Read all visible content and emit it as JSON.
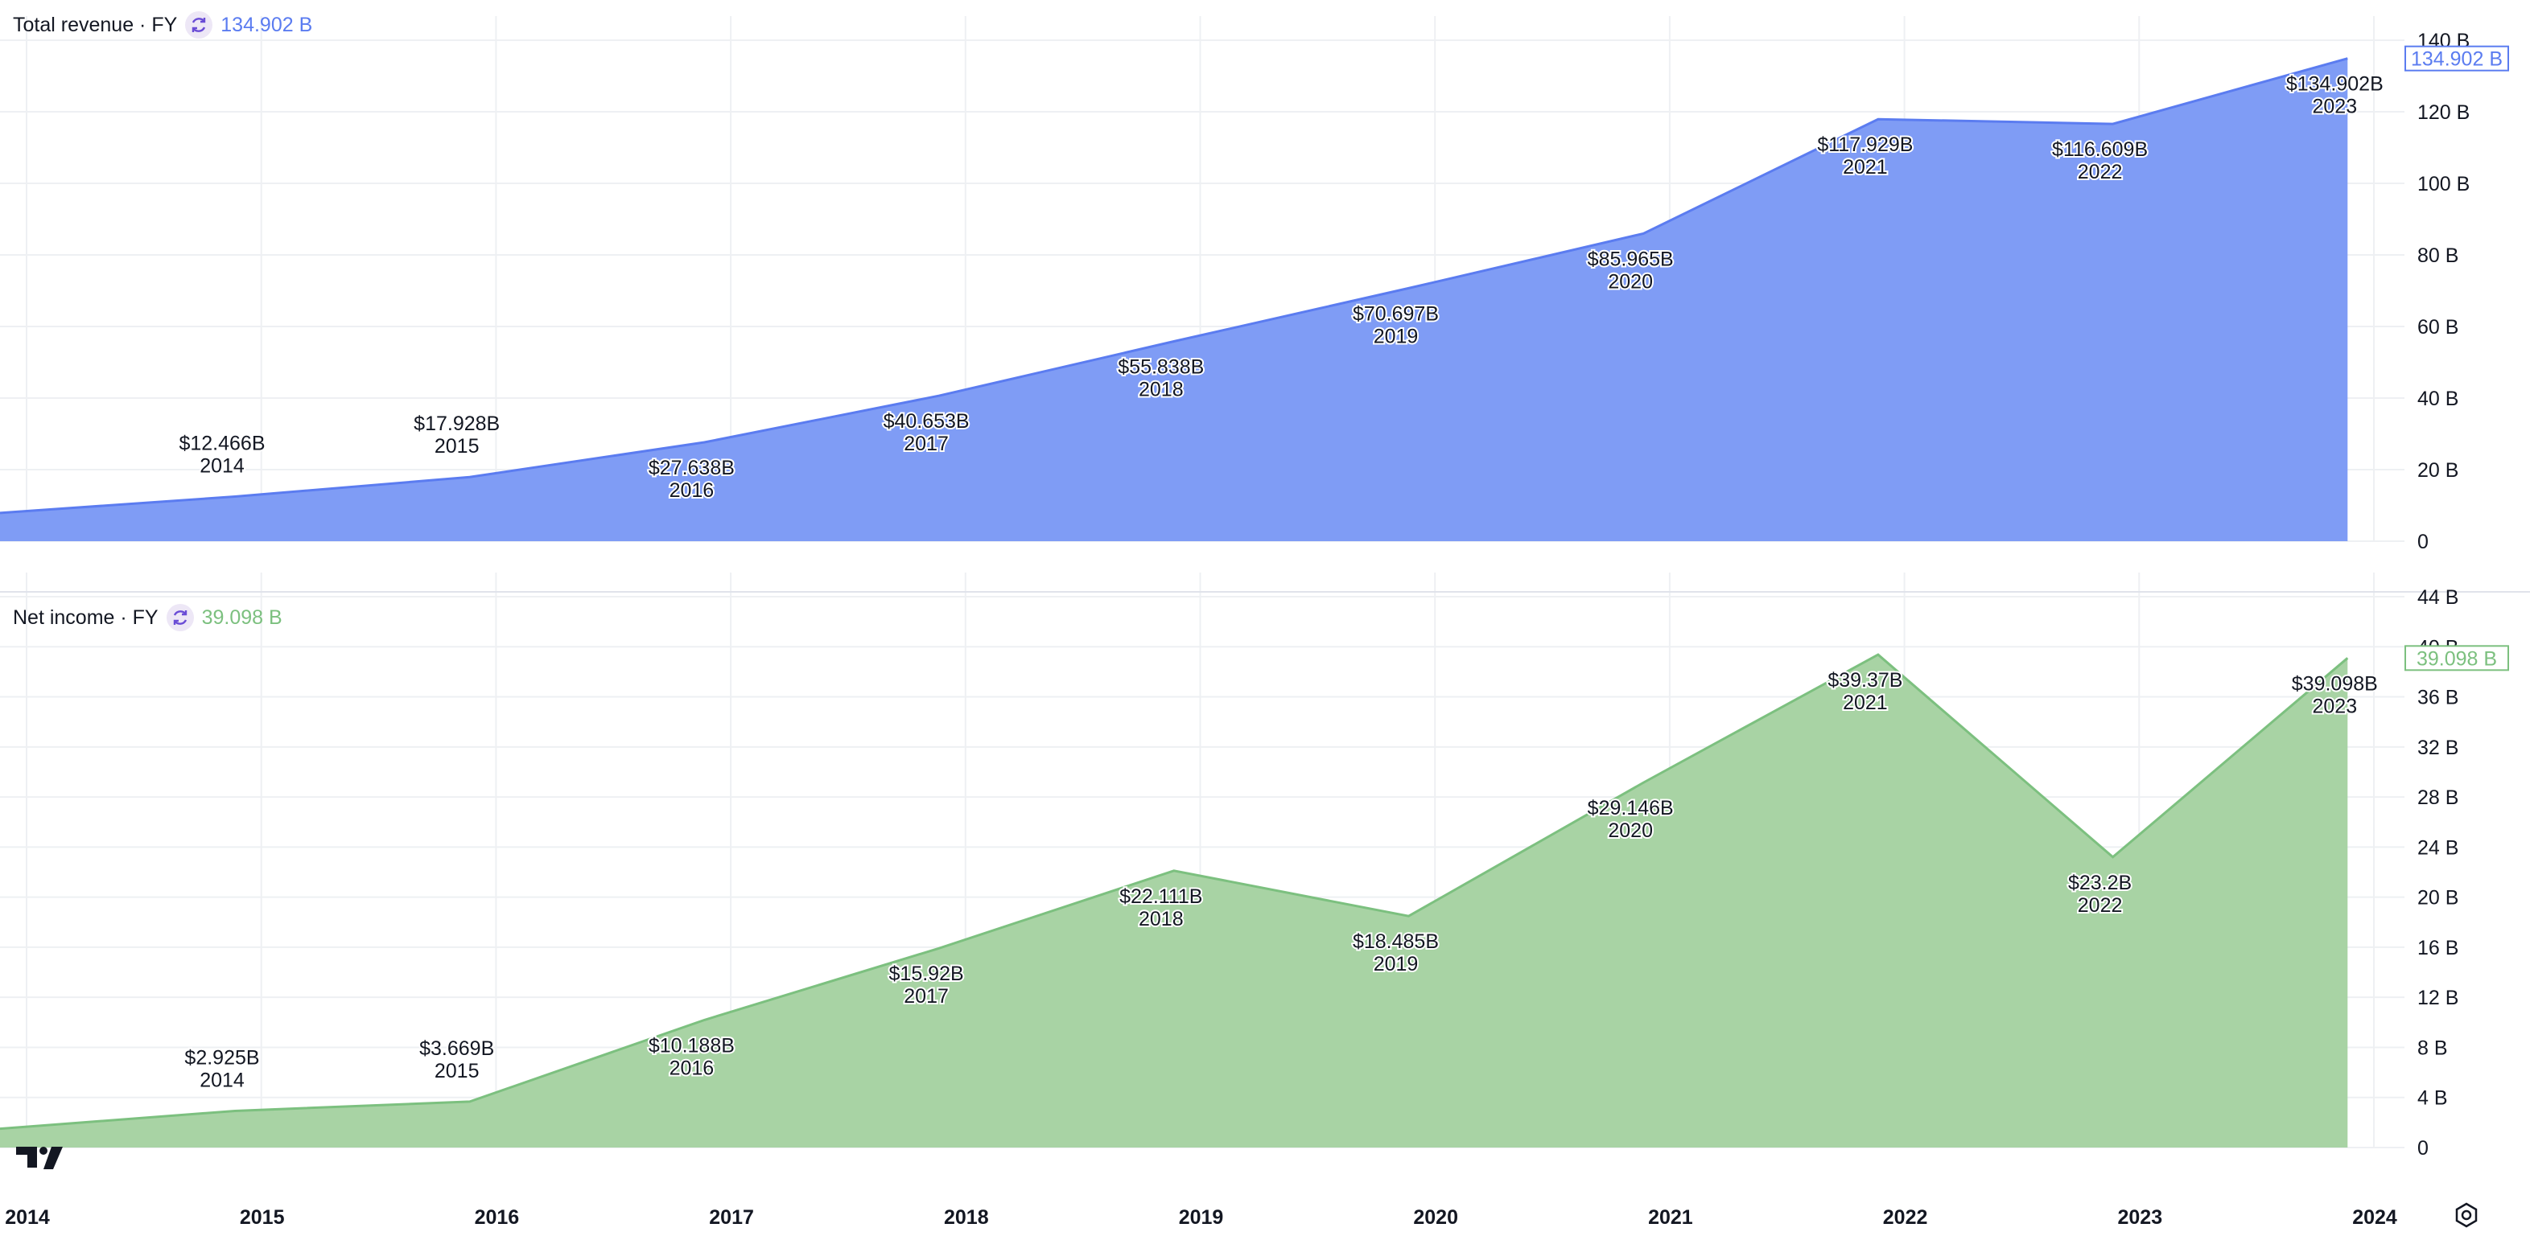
{
  "panels": [
    {
      "legend": {
        "title": "Total revenue · FY",
        "value": "134.902 B",
        "icon": "refresh-icon"
      },
      "badge": "134.902 B",
      "color": "#5b7cf0",
      "fill": "#7f9cf5"
    },
    {
      "legend": {
        "title": "Net income · FY",
        "value": "39.098 B",
        "icon": "refresh-icon"
      },
      "badge": "39.098 B",
      "color": "#7cc07f",
      "fill": "#a8d3a4"
    }
  ],
  "chart_data": [
    {
      "type": "area",
      "title": "Total revenue · FY",
      "x": [
        "2013-12",
        "2014-12",
        "2015-12",
        "2016-12",
        "2017-12",
        "2018-12",
        "2019-12",
        "2020-12",
        "2021-12",
        "2022-12",
        "2023-12"
      ],
      "values": [
        7.9,
        12.466,
        17.928,
        27.638,
        40.653,
        55.838,
        70.697,
        85.965,
        117.929,
        116.609,
        134.902
      ],
      "data_labels": [
        {
          "value": "$12.466B",
          "year": "2014",
          "index": 1,
          "pos": "above"
        },
        {
          "value": "$17.928B",
          "year": "2015",
          "index": 2,
          "pos": "above"
        },
        {
          "value": "$27.638B",
          "year": "2016",
          "index": 3,
          "pos": "below"
        },
        {
          "value": "$40.653B",
          "year": "2017",
          "index": 4,
          "pos": "below"
        },
        {
          "value": "$55.838B",
          "year": "2018",
          "index": 5,
          "pos": "below"
        },
        {
          "value": "$70.697B",
          "year": "2019",
          "index": 6,
          "pos": "below"
        },
        {
          "value": "$85.965B",
          "year": "2020",
          "index": 7,
          "pos": "below"
        },
        {
          "value": "$117.929B",
          "year": "2021",
          "index": 8,
          "pos": "below"
        },
        {
          "value": "$116.609B",
          "year": "2022",
          "index": 9,
          "pos": "below"
        },
        {
          "value": "$134.902B",
          "year": "2023",
          "index": 10,
          "pos": "below"
        }
      ],
      "yticks": [
        "0",
        "20 B",
        "40 B",
        "60 B",
        "80 B",
        "100 B",
        "120 B",
        "140 B"
      ],
      "ytick_values": [
        0,
        20,
        40,
        60,
        80,
        100,
        120,
        140
      ],
      "ylim": [
        0,
        140
      ],
      "unit": "B"
    },
    {
      "type": "area",
      "title": "Net income · FY",
      "x": [
        "2013-12",
        "2014-12",
        "2015-12",
        "2016-12",
        "2017-12",
        "2018-12",
        "2019-12",
        "2020-12",
        "2021-12",
        "2022-12",
        "2023-12"
      ],
      "values": [
        1.5,
        2.925,
        3.669,
        10.188,
        15.92,
        22.111,
        18.485,
        29.146,
        39.37,
        23.2,
        39.098
      ],
      "data_labels": [
        {
          "value": "$2.925B",
          "year": "2014",
          "index": 1,
          "pos": "above"
        },
        {
          "value": "$3.669B",
          "year": "2015",
          "index": 2,
          "pos": "above"
        },
        {
          "value": "$10.188B",
          "year": "2016",
          "index": 3,
          "pos": "below"
        },
        {
          "value": "$15.92B",
          "year": "2017",
          "index": 4,
          "pos": "below"
        },
        {
          "value": "$22.111B",
          "year": "2018",
          "index": 5,
          "pos": "below"
        },
        {
          "value": "$18.485B",
          "year": "2019",
          "index": 6,
          "pos": "below"
        },
        {
          "value": "$29.146B",
          "year": "2020",
          "index": 7,
          "pos": "below"
        },
        {
          "value": "$39.37B",
          "year": "2021",
          "index": 8,
          "pos": "below"
        },
        {
          "value": "$23.2B",
          "year": "2022",
          "index": 9,
          "pos": "below"
        },
        {
          "value": "$39.098B",
          "year": "2023",
          "index": 10,
          "pos": "below"
        }
      ],
      "yticks": [
        "0",
        "4 B",
        "8 B",
        "12 B",
        "16 B",
        "20 B",
        "24 B",
        "28 B",
        "32 B",
        "36 B",
        "40 B",
        "44 B"
      ],
      "ytick_values": [
        0,
        4,
        8,
        12,
        16,
        20,
        24,
        28,
        32,
        36,
        40,
        44
      ],
      "ylim": [
        0,
        44
      ],
      "unit": "B"
    }
  ],
  "x_axis": {
    "labels": [
      "2014",
      "2015",
      "2016",
      "2017",
      "2018",
      "2019",
      "2020",
      "2021",
      "2022",
      "2023",
      "2024"
    ]
  },
  "icons": {
    "logo": "tradingview-logo-icon",
    "settings": "settings-icon"
  }
}
